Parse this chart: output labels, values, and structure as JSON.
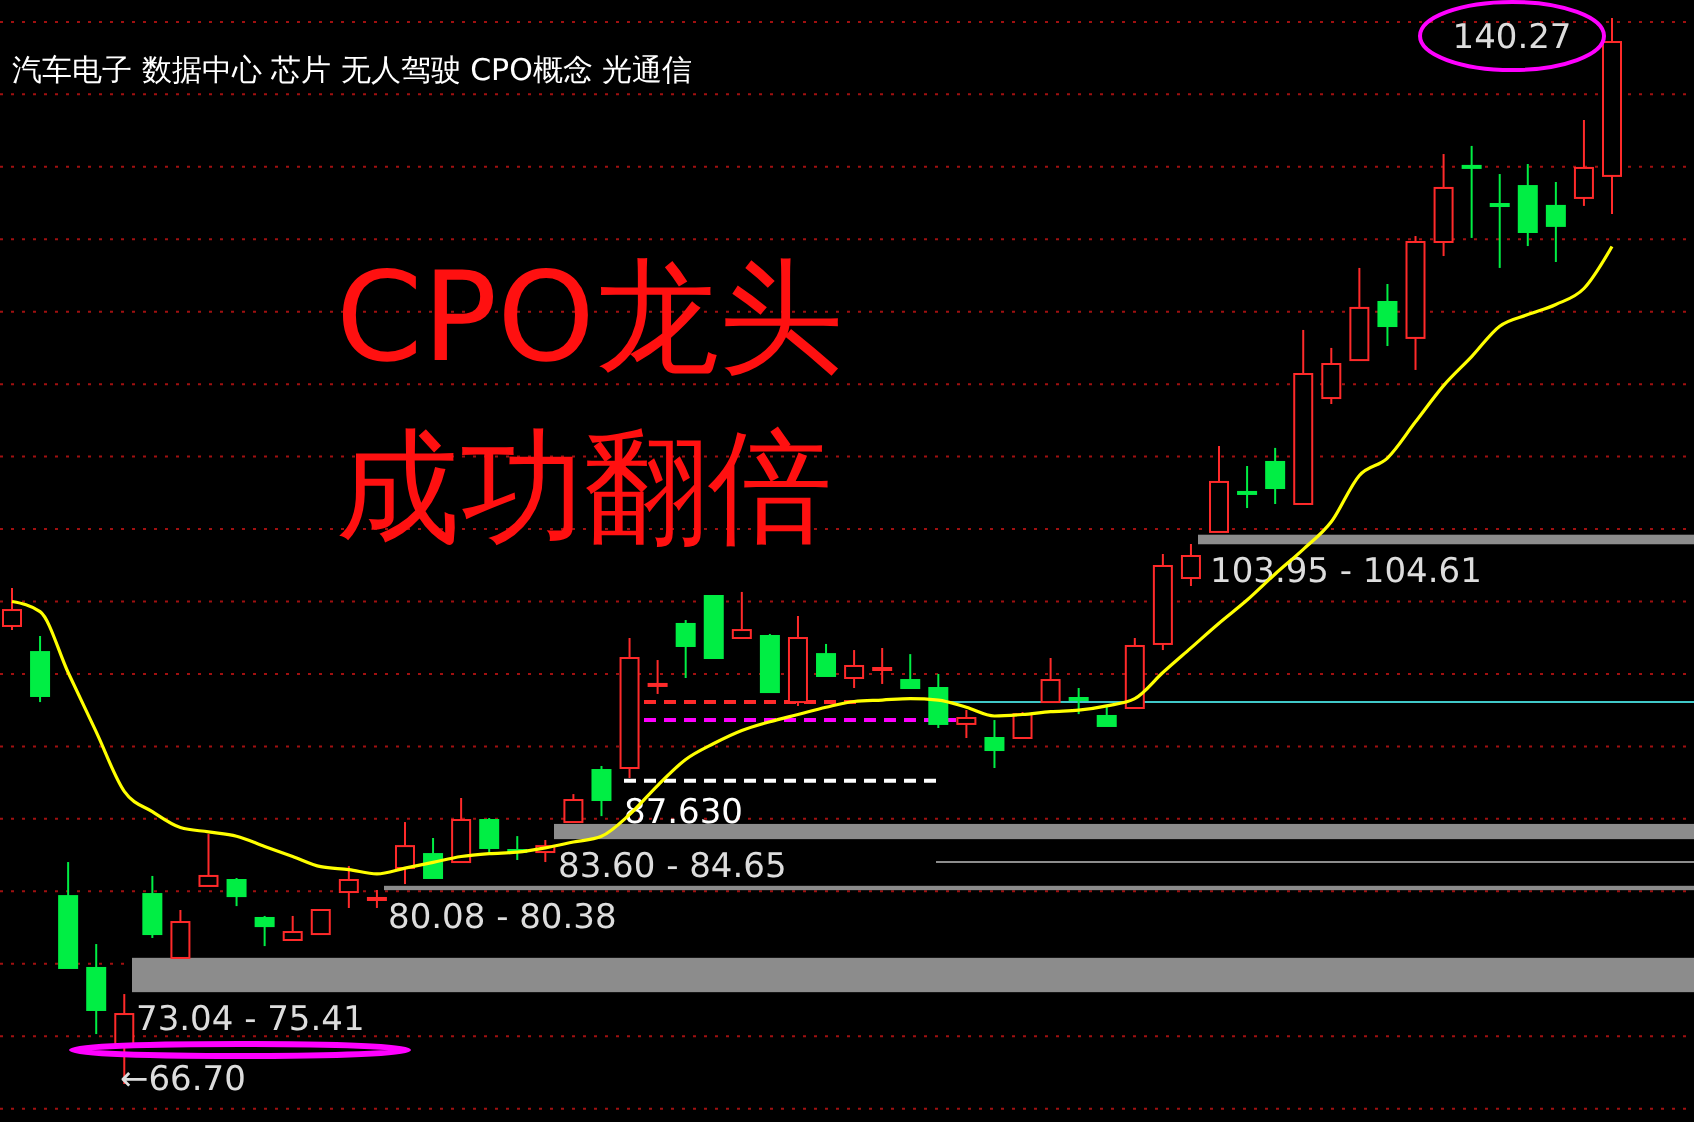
{
  "chart_data": {
    "type": "candlestick",
    "title": "汽车电子 数据中心 芯片 无人驾驶 CPO概念 光通信",
    "annotations": [
      "CPO龙头",
      "成功翻倍",
      "140.27",
      "←66.70"
    ],
    "categories": [
      null,
      null,
      null,
      null,
      null,
      null,
      null,
      null,
      null,
      null,
      null,
      null,
      null,
      null,
      null,
      null,
      null,
      null,
      null,
      null,
      null,
      null,
      null,
      null,
      null,
      null,
      null,
      null,
      null,
      null,
      null,
      null,
      null,
      null,
      null,
      null,
      null,
      null,
      null,
      null,
      null,
      null,
      null,
      null,
      null,
      null,
      null,
      null,
      null,
      null,
      null,
      null,
      null,
      null,
      null,
      null,
      null,
      null
    ],
    "colors": [
      "#ff2a2a",
      "#00ee44",
      "#00ee44",
      "#00ee44",
      "#ff2a2a",
      "#00ee44",
      "#ff2a2a",
      "#ff2a2a",
      "#00ee44",
      "#00ee44",
      "#ff2a2a",
      "#ff2a2a",
      "#ff2a2a",
      "#ff2a2a",
      "#ff2a2a",
      "#00ee44",
      "#ff2a2a",
      "#00ee44",
      "#00ee44",
      "#ff2a2a",
      "#ff2a2a",
      "#00ee44",
      "#ff2a2a",
      "#ff2a2a",
      "#00ee44",
      "#00ee44",
      "#ff2a2a",
      "#00ee44",
      "#ff2a2a",
      "#00ee44",
      "#ff2a2a",
      "#ff2a2a",
      "#00ee44",
      "#00ee44",
      "#ff2a2a",
      "#00ee44",
      "#ff2a2a",
      "#ff2a2a",
      "#00ee44",
      "#00ee44",
      "#ff2a2a",
      "#ff2a2a",
      "#ff2a2a",
      "#ff2a2a",
      "#00ee44",
      "#00ee44",
      "#ff2a2a",
      "#ff2a2a",
      "#ff2a2a",
      "#00ee44",
      "#ff2a2a",
      "#ff2a2a",
      "#00ee44",
      "#00ee44",
      "#00ee44",
      "#00ee44",
      "#ff2a2a",
      "#ff2a2a"
    ],
    "ohlc": [
      [
        98.31,
        100.93,
        98.03,
        99.41
      ],
      [
        96.51,
        97.62,
        93.06,
        93.48
      ],
      [
        79.67,
        82.02,
        74.71,
        74.71
      ],
      [
        74.71,
        76.36,
        70.15,
        71.81
      ],
      [
        69.46,
        72.91,
        66.7,
        71.53
      ],
      [
        79.81,
        81.06,
        76.78,
        77.05
      ],
      [
        75.4,
        78.71,
        75.4,
        77.88
      ],
      [
        80.37,
        83.95,
        80.37,
        81.06
      ],
      [
        80.78,
        80.92,
        78.98,
        79.67
      ],
      [
        78.16,
        78.3,
        76.22,
        77.6
      ],
      [
        76.64,
        78.3,
        76.64,
        77.19
      ],
      [
        77.05,
        78.71,
        77.05,
        78.71
      ],
      [
        79.95,
        81.74,
        78.85,
        80.78
      ],
      [
        79.54,
        80.09,
        78.85,
        79.54
      ],
      [
        81.61,
        84.78,
        80.5,
        83.12
      ],
      [
        82.57,
        83.68,
        80.92,
        80.92
      ],
      [
        82.02,
        86.44,
        82.02,
        84.92
      ],
      [
        84.92,
        85.06,
        82.71,
        82.99
      ],
      [
        82.85,
        83.81,
        82.16,
        82.85
      ],
      [
        82.71,
        83.54,
        82.02,
        83.12
      ],
      [
        84.78,
        86.71,
        84.78,
        86.3
      ],
      [
        88.37,
        88.65,
        85.19,
        86.3
      ],
      [
        88.51,
        97.48,
        87.82,
        96.1
      ],
      [
        94.31,
        95.96,
        93.62,
        94.31
      ],
      [
        98.45,
        98.72,
        94.72,
        96.93
      ],
      [
        100.38,
        100.38,
        96.1,
        96.1
      ],
      [
        97.48,
        100.66,
        97.48,
        98.03
      ],
      [
        97.62,
        97.76,
        93.75,
        93.75
      ],
      [
        93.06,
        99.0,
        92.79,
        97.48
      ],
      [
        96.37,
        97.07,
        94.86,
        94.86
      ],
      [
        94.72,
        96.65,
        94.03,
        95.55
      ],
      [
        95.41,
        96.79,
        94.31,
        95.41
      ],
      [
        94.58,
        96.37,
        94.03,
        94.03
      ],
      [
        94.03,
        95.0,
        91.27,
        91.55
      ],
      [
        91.55,
        92.51,
        90.58,
        91.96
      ],
      [
        90.58,
        91.82,
        88.51,
        89.75
      ],
      [
        90.58,
        92.37,
        90.58,
        92.23
      ],
      [
        93.06,
        96.1,
        93.06,
        94.58
      ],
      [
        93.34,
        94.03,
        92.23,
        93.34
      ],
      [
        92.1,
        92.79,
        91.41,
        91.41
      ],
      [
        92.65,
        97.48,
        92.65,
        96.93
      ],
      [
        97.07,
        103.28,
        96.65,
        102.45
      ],
      [
        101.62,
        103.97,
        101.07,
        103.14
      ],
      [
        104.8,
        110.73,
        104.8,
        108.25
      ],
      [
        107.56,
        109.35,
        106.45,
        107.56
      ],
      [
        109.63,
        110.6,
        106.73,
        107.83
      ],
      [
        106.73,
        118.74,
        106.73,
        115.7
      ],
      [
        114.04,
        117.5,
        113.63,
        116.39
      ],
      [
        116.66,
        123.02,
        116.66,
        120.26
      ],
      [
        120.67,
        121.91,
        117.63,
        119.01
      ],
      [
        118.19,
        125.22,
        115.98,
        124.81
      ],
      [
        124.81,
        130.88,
        123.84,
        128.54
      ],
      [
        130.06,
        131.44,
        125.09,
        130.06
      ],
      [
        127.43,
        129.5,
        123.02,
        127.43
      ],
      [
        128.67,
        130.19,
        124.53,
        125.5
      ],
      [
        127.3,
        128.95,
        123.43,
        125.92
      ],
      [
        127.85,
        133.23,
        127.3,
        129.92
      ],
      [
        129.37,
        140.27,
        126.74,
        138.61
      ]
    ],
    "series": [
      {
        "type": "line",
        "color": "#ffff00",
        "values": [
          100.0,
          99.3,
          95.1,
          91.0,
          86.9,
          85.5,
          84.4,
          84.1,
          83.8,
          83.1,
          82.4,
          81.7,
          81.5,
          81.2,
          81.6,
          82.0,
          82.4,
          82.6,
          82.7,
          83.0,
          83.4,
          83.8,
          85.3,
          87.3,
          89.1,
          90.2,
          91.1,
          91.7,
          92.2,
          92.7,
          93.1,
          93.2,
          93.3,
          93.2,
          92.7,
          92.1,
          92.2,
          92.4,
          92.5,
          92.8,
          93.3,
          95.1,
          96.8,
          98.5,
          100.1,
          101.9,
          103.6,
          105.5,
          108.7,
          109.9,
          112.4,
          114.9,
          116.9,
          119.0,
          119.8,
          120.5,
          121.6,
          124.5
        ]
      }
    ],
    "bands": [
      {
        "axis": "y",
        "from": 73.04,
        "to": 75.41,
        "label": "73.04 - 75.41",
        "color": "#8c8c8c"
      },
      {
        "axis": "y",
        "from": 80.08,
        "to": 80.38,
        "label": "80.08 - 80.38",
        "color": "#8c8c8c"
      },
      {
        "axis": "y",
        "from": 83.6,
        "to": 84.65,
        "label": "83.60 - 84.65",
        "color": "#8c8c8c"
      },
      {
        "axis": "y",
        "from": 103.95,
        "to": 104.61,
        "label": "103.95 - 104.61",
        "color": "#8c8c8c"
      }
    ],
    "ref_lines": [
      {
        "axis": "y",
        "value": 87.63,
        "label": "87.630",
        "color": "#ffffff",
        "line_style": "dashed"
      },
      {
        "axis": "y",
        "value": 93.06,
        "color": "#ff2a2a",
        "line_style": "dashed"
      },
      {
        "axis": "y",
        "value": 91.82,
        "color": "#ff00ff",
        "line_style": "dashed"
      },
      {
        "axis": "y",
        "value": 93.06,
        "color": "#40c8c8",
        "line_style": "solid"
      },
      {
        "axis": "y",
        "value": 82.02,
        "color": "#8c8c8c",
        "line_style": "solid"
      }
    ],
    "ylim": [
      64.08,
      141.51
    ],
    "yticks": [
      {
        "value": 65,
        "label": null
      },
      {
        "value": 70,
        "label": null
      },
      {
        "value": 75,
        "label": null
      },
      {
        "value": 80,
        "label": null
      },
      {
        "value": 85,
        "label": null
      },
      {
        "value": 90,
        "label": null
      },
      {
        "value": 95,
        "label": null
      },
      {
        "value": 100,
        "label": null
      },
      {
        "value": 105,
        "label": null
      },
      {
        "value": 110,
        "label": null
      },
      {
        "value": 115,
        "label": null
      },
      {
        "value": 120,
        "label": null
      },
      {
        "value": 125,
        "label": null
      },
      {
        "value": 130,
        "label": null
      },
      {
        "value": 135,
        "label": null
      },
      {
        "value": 140,
        "label": null
      }
    ],
    "grid": "y"
  }
}
